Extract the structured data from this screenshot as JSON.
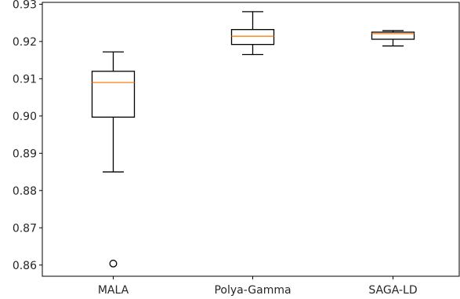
{
  "chart_data": {
    "type": "boxplot",
    "title": "",
    "xlabel": "",
    "ylabel": "",
    "ylim": [
      0.857,
      0.9305
    ],
    "yticks": [
      0.86,
      0.87,
      0.88,
      0.89,
      0.9,
      0.91,
      0.92,
      0.93
    ],
    "ytick_labels": [
      "0.86",
      "0.87",
      "0.88",
      "0.89",
      "0.90",
      "0.91",
      "0.92",
      "0.93"
    ],
    "categories": [
      "MALA",
      "Polya-Gamma",
      "SAGA-LD"
    ],
    "boxes": [
      {
        "category": "MALA",
        "whisker_low": 0.885,
        "q1": 0.8997,
        "median": 0.909,
        "q3": 0.912,
        "whisker_high": 0.9172,
        "outliers": [
          0.8604
        ]
      },
      {
        "category": "Polya-Gamma",
        "whisker_low": 0.9165,
        "q1": 0.9192,
        "median": 0.9214,
        "q3": 0.9232,
        "whisker_high": 0.928,
        "outliers": []
      },
      {
        "category": "SAGA-LD",
        "whisker_low": 0.9188,
        "q1": 0.9206,
        "median": 0.9221,
        "q3": 0.9225,
        "whisker_high": 0.9229,
        "outliers": []
      }
    ],
    "colors": {
      "box": "#000000",
      "median": "#ff7f0e",
      "axis": "#000000",
      "text": "#262626"
    },
    "grid": false,
    "legend": "none"
  }
}
